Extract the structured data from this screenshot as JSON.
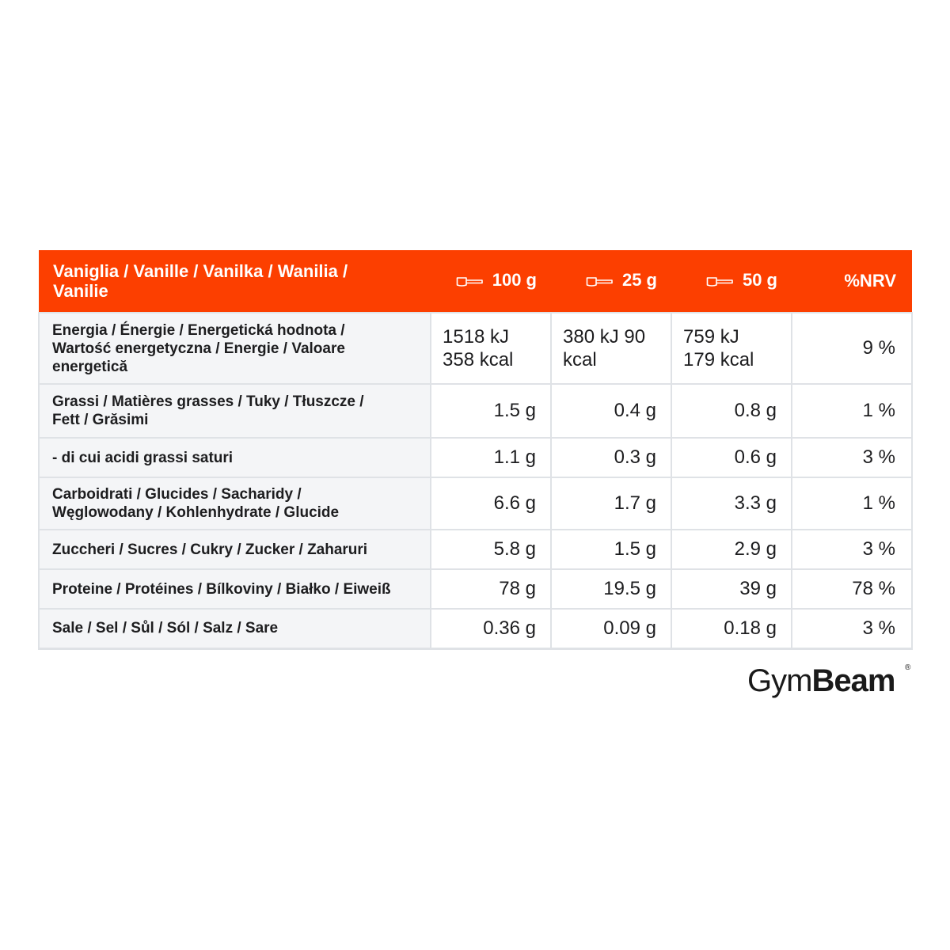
{
  "table": {
    "header": {
      "flavor_line1": "Vaniglia / Vanille / Vanilka / Wanilia /",
      "flavor_line2": "Vanilie",
      "col_100": "100 g",
      "col_25": "25 g",
      "col_50": "50 g",
      "col_nrv": "%NRV",
      "scoop_icon": "scoop-icon"
    },
    "rows": [
      {
        "label_lines": [
          "Energia / Énergie / Energetická hodnota /",
          "Wartość energetyczna / Energie / Valoare",
          "energetică"
        ],
        "v100_lines": [
          "1518 kJ",
          "358 kcal"
        ],
        "v25_lines": [
          "380 kJ 90",
          "kcal"
        ],
        "v50_lines": [
          "759 kJ",
          "179 kcal"
        ],
        "nrv": "9 %"
      },
      {
        "label_lines": [
          "Grassi / Matières grasses / Tuky / Tłuszcze /",
          "Fett / Grăsimi"
        ],
        "v100": "1.5 g",
        "v25": "0.4 g",
        "v50": "0.8 g",
        "nrv": "1 %"
      },
      {
        "label": "- di cui acidi grassi saturi",
        "v100": "1.1 g",
        "v25": "0.3 g",
        "v50": "0.6 g",
        "nrv": "3 %"
      },
      {
        "label_lines": [
          "Carboidrati / Glucides / Sacharidy /",
          "Węglowodany / Kohlenhydrate / Glucide"
        ],
        "v100": "6.6 g",
        "v25": "1.7 g",
        "v50": "3.3 g",
        "nrv": "1 %"
      },
      {
        "label": "Zuccheri / Sucres / Cukry / Zucker / Zaharuri",
        "v100": "5.8 g",
        "v25": "1.5 g",
        "v50": "2.9 g",
        "nrv": "3 %"
      },
      {
        "label": "Proteine / Protéines / Bílkoviny / Białko / Eiweiß",
        "v100": "78 g",
        "v25": "19.5 g",
        "v50": "39 g",
        "nrv": "78 %"
      },
      {
        "label": "Sale / Sel / Sůl / Sól / Salz / Sare",
        "v100": "0.36 g",
        "v25": "0.09 g",
        "v50": "0.18 g",
        "nrv": "3 %"
      }
    ]
  },
  "logo": {
    "text_light": "Gym",
    "text_bold": "Beam",
    "registered": "®"
  },
  "colors": {
    "header_bg": "#fc3f00",
    "label_bg": "#f4f5f7",
    "border": "#dfe2e6"
  }
}
